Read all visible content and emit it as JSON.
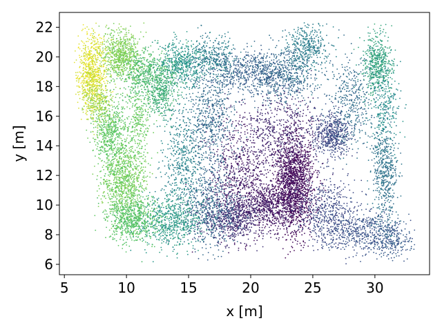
{
  "chart_data": {
    "type": "scatter",
    "title": "",
    "xlabel": "x [m]",
    "ylabel": "y [m]",
    "xlim": [
      4.6,
      34.4
    ],
    "ylim": [
      5.3,
      23.0
    ],
    "grid": false,
    "legend": "none",
    "colormap": "viridis",
    "color_value_range": [
      0,
      1
    ],
    "xticks": [
      5,
      10,
      15,
      20,
      25,
      30
    ],
    "yticks": [
      6,
      8,
      10,
      12,
      14,
      16,
      18,
      20,
      22
    ],
    "xtick_labels": [
      "5",
      "10",
      "15",
      "20",
      "25",
      "30"
    ],
    "ytick_labels": [
      "6",
      "8",
      "10",
      "12",
      "14",
      "16",
      "18",
      "20",
      "22"
    ],
    "point_color_stops": [
      "#440154",
      "#3b528b",
      "#21918c",
      "#5ec962",
      "#fde725"
    ],
    "density_clusters": [
      {
        "x": 23.5,
        "y": 11.6,
        "sx": 0.8,
        "sy": 1.7,
        "color_value": 0.02,
        "n": 1500
      },
      {
        "x": 21.5,
        "y": 10.0,
        "sx": 1.5,
        "sy": 0.9,
        "color_value": 0.06,
        "n": 800
      },
      {
        "x": 19.0,
        "y": 12.0,
        "sx": 1.2,
        "sy": 2.0,
        "color_value": 0.07,
        "n": 650
      },
      {
        "x": 22.5,
        "y": 14.8,
        "sx": 1.6,
        "sy": 1.4,
        "color_value": 0.12,
        "n": 550
      },
      {
        "x": 18.5,
        "y": 9.1,
        "sx": 1.3,
        "sy": 0.7,
        "color_value": 0.14,
        "n": 550
      },
      {
        "x": 26.5,
        "y": 14.8,
        "sx": 0.8,
        "sy": 0.8,
        "color_value": 0.22,
        "n": 500
      },
      {
        "x": 26.2,
        "y": 9.6,
        "sx": 1.3,
        "sy": 1.2,
        "color_value": 0.22,
        "n": 500
      },
      {
        "x": 29.0,
        "y": 8.2,
        "sx": 1.5,
        "sy": 0.7,
        "color_value": 0.26,
        "n": 450
      },
      {
        "x": 31.5,
        "y": 7.7,
        "sx": 0.9,
        "sy": 0.6,
        "color_value": 0.28,
        "n": 250
      },
      {
        "x": 16.8,
        "y": 9.6,
        "sx": 1.1,
        "sy": 1.3,
        "color_value": 0.32,
        "n": 550
      },
      {
        "x": 16.8,
        "y": 15.5,
        "sx": 1.0,
        "sy": 2.2,
        "color_value": 0.34,
        "n": 650
      },
      {
        "x": 19.8,
        "y": 18.9,
        "sx": 1.8,
        "sy": 0.7,
        "color_value": 0.3,
        "n": 500
      },
      {
        "x": 22.5,
        "y": 18.8,
        "sx": 1.4,
        "sy": 1.0,
        "color_value": 0.33,
        "n": 550
      },
      {
        "x": 24.5,
        "y": 20.5,
        "sx": 0.9,
        "sy": 0.9,
        "color_value": 0.42,
        "n": 400
      },
      {
        "x": 28.2,
        "y": 17.0,
        "sx": 1.0,
        "sy": 1.6,
        "color_value": 0.35,
        "n": 400
      },
      {
        "x": 30.8,
        "y": 12.3,
        "sx": 0.5,
        "sy": 1.9,
        "color_value": 0.37,
        "n": 500
      },
      {
        "x": 30.2,
        "y": 19.6,
        "sx": 0.6,
        "sy": 1.0,
        "color_value": 0.58,
        "n": 500
      },
      {
        "x": 30.8,
        "y": 16.6,
        "sx": 0.6,
        "sy": 1.6,
        "color_value": 0.48,
        "n": 250
      },
      {
        "x": 14.5,
        "y": 13.0,
        "sx": 0.8,
        "sy": 2.2,
        "color_value": 0.44,
        "n": 500
      },
      {
        "x": 14.5,
        "y": 19.6,
        "sx": 1.0,
        "sy": 0.8,
        "color_value": 0.52,
        "n": 500
      },
      {
        "x": 17.0,
        "y": 20.0,
        "sx": 1.0,
        "sy": 0.7,
        "color_value": 0.42,
        "n": 300
      },
      {
        "x": 13.5,
        "y": 8.8,
        "sx": 1.3,
        "sy": 0.9,
        "color_value": 0.54,
        "n": 600
      },
      {
        "x": 12.8,
        "y": 17.6,
        "sx": 0.6,
        "sy": 0.8,
        "color_value": 0.62,
        "n": 350
      },
      {
        "x": 11.5,
        "y": 18.8,
        "sx": 1.0,
        "sy": 0.9,
        "color_value": 0.68,
        "n": 550
      },
      {
        "x": 9.8,
        "y": 11.6,
        "sx": 0.9,
        "sy": 1.4,
        "color_value": 0.78,
        "n": 900
      },
      {
        "x": 10.5,
        "y": 9.0,
        "sx": 1.0,
        "sy": 0.8,
        "color_value": 0.72,
        "n": 600
      },
      {
        "x": 8.6,
        "y": 15.0,
        "sx": 0.7,
        "sy": 1.2,
        "color_value": 0.74,
        "n": 550
      },
      {
        "x": 9.5,
        "y": 20.2,
        "sx": 0.8,
        "sy": 0.9,
        "color_value": 0.8,
        "n": 650
      },
      {
        "x": 11.0,
        "y": 15.5,
        "sx": 0.5,
        "sy": 1.2,
        "color_value": 0.76,
        "n": 250
      },
      {
        "x": 7.2,
        "y": 19.0,
        "sx": 0.6,
        "sy": 1.3,
        "color_value": 0.95,
        "n": 750
      },
      {
        "x": 7.6,
        "y": 17.0,
        "sx": 0.6,
        "sy": 0.9,
        "color_value": 0.86,
        "n": 250
      }
    ]
  }
}
